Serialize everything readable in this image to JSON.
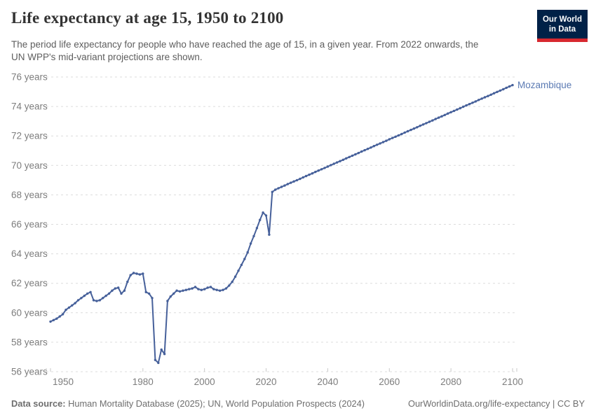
{
  "header": {
    "title": "Life expectancy at age 15, 1950 to 2100",
    "subtitle": "The period life expectancy for people who have reached the age of 15, in a given year. From 2022 onwards, the UN WPP's mid-variant projections are shown.",
    "logo": {
      "line1": "Our World",
      "line2": "in Data"
    }
  },
  "footer": {
    "source_label": "Data source:",
    "source_text": " Human Mortality Database (2025); UN, World Population Prospects (2024)",
    "credit": "OurWorldinData.org/life-expectancy | CC BY"
  },
  "colors": {
    "background": "#ffffff",
    "title": "#333333",
    "subtitle": "#5e5e5e",
    "footer": "#6e6e6e",
    "axis_text": "#7d7d7d",
    "grid": "#dcdcdc",
    "tick": "#c9c9c9",
    "line": "#46609a",
    "entity_label": "#5b7ab3",
    "logo_bg": "#002147",
    "logo_accent": "#d7282f"
  },
  "chart_data": {
    "type": "line",
    "title": "Life expectancy at age 15, 1950 to 2100",
    "xlabel": "",
    "ylabel": "",
    "units": "years",
    "xlim": [
      1950,
      2100
    ],
    "ylim": [
      56,
      76
    ],
    "x_ticks": [
      1950,
      1980,
      2000,
      2020,
      2040,
      2060,
      2080,
      2100
    ],
    "y_ticks": [
      56,
      58,
      60,
      62,
      64,
      66,
      68,
      70,
      72,
      74,
      76
    ],
    "y_tick_suffix": " years",
    "grid": "dashed-horizontal",
    "legend_position": "end-of-line-label",
    "projection_start": 2022,
    "series": [
      {
        "name": "Mozambique",
        "x": [
          1950,
          1951,
          1952,
          1953,
          1954,
          1955,
          1956,
          1957,
          1958,
          1959,
          1960,
          1961,
          1962,
          1963,
          1964,
          1965,
          1966,
          1967,
          1968,
          1969,
          1970,
          1971,
          1972,
          1973,
          1974,
          1975,
          1976,
          1977,
          1978,
          1979,
          1980,
          1981,
          1982,
          1983,
          1984,
          1985,
          1986,
          1987,
          1988,
          1989,
          1990,
          1991,
          1992,
          1993,
          1994,
          1995,
          1996,
          1997,
          1998,
          1999,
          2000,
          2001,
          2002,
          2003,
          2004,
          2005,
          2006,
          2007,
          2008,
          2009,
          2010,
          2011,
          2012,
          2013,
          2014,
          2015,
          2016,
          2017,
          2018,
          2019,
          2020,
          2021,
          2022,
          2023,
          2024,
          2025,
          2026,
          2027,
          2028,
          2029,
          2030,
          2031,
          2032,
          2033,
          2034,
          2035,
          2036,
          2037,
          2038,
          2039,
          2040,
          2041,
          2042,
          2043,
          2044,
          2045,
          2046,
          2047,
          2048,
          2049,
          2050,
          2051,
          2052,
          2053,
          2054,
          2055,
          2056,
          2057,
          2058,
          2059,
          2060,
          2061,
          2062,
          2063,
          2064,
          2065,
          2066,
          2067,
          2068,
          2069,
          2070,
          2071,
          2072,
          2073,
          2074,
          2075,
          2076,
          2077,
          2078,
          2079,
          2080,
          2081,
          2082,
          2083,
          2084,
          2085,
          2086,
          2087,
          2088,
          2089,
          2090,
          2091,
          2092,
          2093,
          2094,
          2095,
          2096,
          2097,
          2098,
          2099,
          2100
        ],
        "values": [
          59.4,
          59.5,
          59.6,
          59.75,
          59.9,
          60.2,
          60.35,
          60.5,
          60.65,
          60.85,
          61.0,
          61.15,
          61.3,
          61.4,
          60.85,
          60.8,
          60.85,
          61.0,
          61.15,
          61.3,
          61.5,
          61.65,
          61.7,
          61.3,
          61.5,
          62.1,
          62.55,
          62.7,
          62.65,
          62.6,
          62.65,
          61.4,
          61.3,
          61.0,
          56.8,
          56.6,
          57.5,
          57.2,
          60.8,
          61.1,
          61.3,
          61.5,
          61.45,
          61.5,
          61.55,
          61.6,
          61.65,
          61.75,
          61.6,
          61.55,
          61.6,
          61.7,
          61.75,
          61.6,
          61.55,
          61.5,
          61.55,
          61.65,
          61.85,
          62.1,
          62.45,
          62.85,
          63.25,
          63.65,
          64.1,
          64.7,
          65.2,
          65.75,
          66.3,
          66.8,
          66.6,
          65.3,
          68.2,
          68.35,
          68.45,
          68.54,
          68.63,
          68.73,
          68.82,
          68.91,
          69.0,
          69.09,
          69.19,
          69.28,
          69.37,
          69.46,
          69.56,
          69.65,
          69.74,
          69.83,
          69.92,
          70.02,
          70.11,
          70.2,
          70.29,
          70.38,
          70.48,
          70.57,
          70.66,
          70.75,
          70.84,
          70.94,
          71.03,
          71.12,
          71.21,
          71.31,
          71.4,
          71.49,
          71.58,
          71.67,
          71.77,
          71.86,
          71.95,
          72.04,
          72.13,
          72.23,
          72.32,
          72.41,
          72.5,
          72.59,
          72.69,
          72.78,
          72.87,
          72.96,
          73.05,
          73.15,
          73.24,
          73.33,
          73.42,
          73.52,
          73.61,
          73.7,
          73.79,
          73.88,
          73.98,
          74.07,
          74.16,
          74.25,
          74.34,
          74.44,
          74.53,
          74.62,
          74.71,
          74.8,
          74.9,
          74.99,
          75.08,
          75.17,
          75.27,
          75.36,
          75.45
        ]
      }
    ]
  }
}
